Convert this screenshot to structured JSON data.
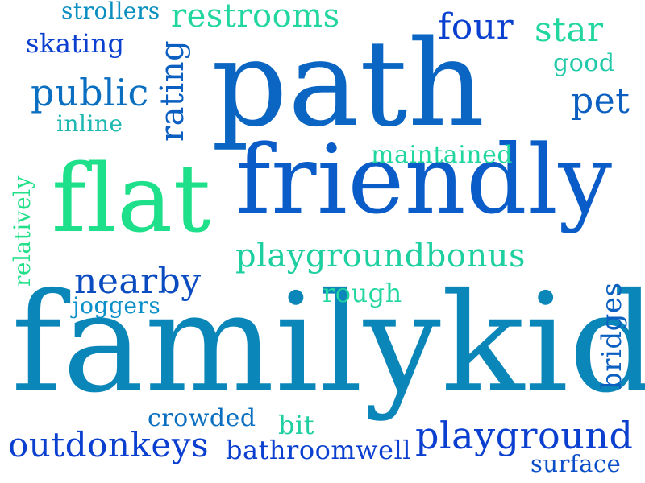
{
  "words": [
    {
      "id": "familykid",
      "text": "familykid",
      "color": "#0A86B8"
    },
    {
      "id": "path",
      "text": "path",
      "color": "#0A66C2"
    },
    {
      "id": "friendly",
      "text": "friendly",
      "color": "#0A5CC8"
    },
    {
      "id": "flat",
      "text": "flat",
      "color": "#1FE08A"
    },
    {
      "id": "playgroundbonus",
      "text": "playgroundbonus",
      "color": "#1ECFA0"
    },
    {
      "id": "outdonkeys",
      "text": "outdonkeys",
      "color": "#0A3FCF"
    },
    {
      "id": "playground",
      "text": "playground",
      "color": "#0A3FCF"
    },
    {
      "id": "nearby",
      "text": "nearby",
      "color": "#0A4CC0"
    },
    {
      "id": "restrooms",
      "text": "restrooms",
      "color": "#22D6A0"
    },
    {
      "id": "four",
      "text": "four",
      "color": "#0A3FCF"
    },
    {
      "id": "star",
      "text": "star",
      "color": "#22D6A0"
    },
    {
      "id": "public",
      "text": "public",
      "color": "#0A6FC0"
    },
    {
      "id": "rating",
      "text": "rating",
      "color": "#0A5FC0"
    },
    {
      "id": "pet",
      "text": "pet",
      "color": "#0A5FC0"
    },
    {
      "id": "maintained",
      "text": "maintained",
      "color": "#22D6A0"
    },
    {
      "id": "bathroomwell",
      "text": "bathroomwell",
      "color": "#0A3FCF"
    },
    {
      "id": "surface",
      "text": "surface",
      "color": "#0A4FC8"
    },
    {
      "id": "crowded",
      "text": "crowded",
      "color": "#0A6FC0"
    },
    {
      "id": "bridges",
      "text": "bridges",
      "color": "#0A5FC0"
    },
    {
      "id": "skating",
      "text": "skating",
      "color": "#0A3FCF"
    },
    {
      "id": "strollers",
      "text": "strollers",
      "color": "#0A8FC0"
    },
    {
      "id": "good",
      "text": "good",
      "color": "#1EC8A8"
    },
    {
      "id": "inline",
      "text": "inline",
      "color": "#1EB8B0"
    },
    {
      "id": "relatively",
      "text": "relatively",
      "color": "#22E08A"
    },
    {
      "id": "joggers",
      "text": "joggers",
      "color": "#0A8FC8"
    },
    {
      "id": "rough",
      "text": "rough",
      "color": "#22D6A0"
    },
    {
      "id": "bit",
      "text": "bit",
      "color": "#1ECFA0"
    }
  ]
}
